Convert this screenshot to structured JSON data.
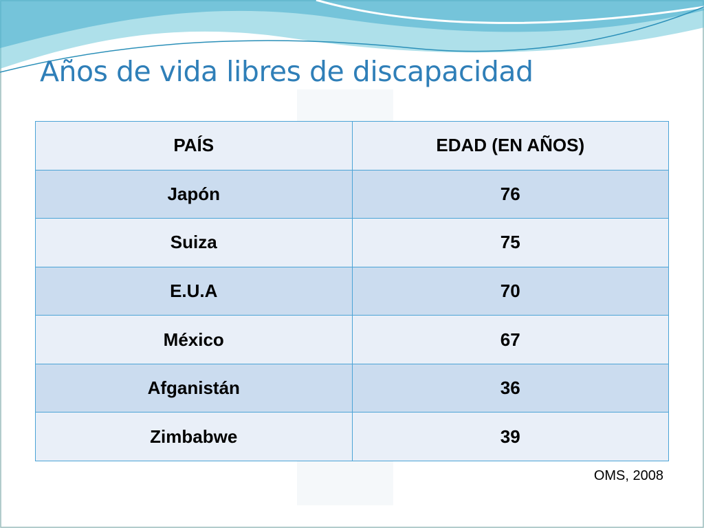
{
  "header": {
    "title": "Años de vida libres de discapacidad"
  },
  "table": {
    "columns": [
      "PAÍS",
      "EDAD (EN AÑOS)"
    ],
    "rows": [
      [
        "Japón",
        76
      ],
      [
        "Suiza",
        75
      ],
      [
        "E.U.A",
        70
      ],
      [
        "México",
        67
      ],
      [
        "Afganistán",
        36
      ],
      [
        "Zimbabwe",
        39
      ]
    ]
  },
  "source": "OMS, 2008"
}
